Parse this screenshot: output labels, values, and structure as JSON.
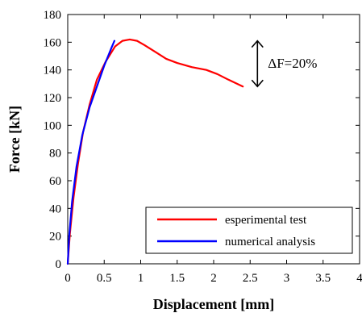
{
  "chart_data": {
    "type": "line",
    "title": "",
    "xlabel": "Displacement [mm]",
    "ylabel": "Force [kN]",
    "xlim": [
      0,
      4
    ],
    "ylim": [
      0,
      180
    ],
    "x_ticks": [
      0,
      0.5,
      1,
      1.5,
      2,
      2.5,
      3,
      3.5,
      4
    ],
    "y_ticks": [
      0,
      20,
      40,
      60,
      80,
      100,
      120,
      140,
      160,
      180
    ],
    "x_tick_labels": [
      "0",
      "0.5",
      "1",
      "1.5",
      "2",
      "2.5",
      "3",
      "3.5",
      "4"
    ],
    "y_tick_labels": [
      "0",
      "20",
      "40",
      "60",
      "80",
      "100",
      "120",
      "140",
      "160",
      "180"
    ],
    "grid": false,
    "legend_position": "bottom-right",
    "series": [
      {
        "name": "esperimental test",
        "color": "#ff0000",
        "points": [
          [
            0.0,
            0
          ],
          [
            0.03,
            22
          ],
          [
            0.08,
            48
          ],
          [
            0.14,
            72
          ],
          [
            0.21,
            95
          ],
          [
            0.3,
            115
          ],
          [
            0.4,
            133
          ],
          [
            0.52,
            146
          ],
          [
            0.65,
            157
          ],
          [
            0.75,
            161
          ],
          [
            0.85,
            162
          ],
          [
            0.95,
            161
          ],
          [
            1.05,
            158
          ],
          [
            1.2,
            153
          ],
          [
            1.35,
            148
          ],
          [
            1.5,
            145
          ],
          [
            1.7,
            142
          ],
          [
            1.9,
            140
          ],
          [
            2.05,
            137
          ],
          [
            2.2,
            133
          ],
          [
            2.4,
            128
          ]
        ]
      },
      {
        "name": "numerical analysis",
        "color": "#0000ff",
        "points": [
          [
            0.0,
            0
          ],
          [
            0.02,
            20
          ],
          [
            0.06,
            45
          ],
          [
            0.12,
            70
          ],
          [
            0.2,
            93
          ],
          [
            0.3,
            113
          ],
          [
            0.4,
            128
          ],
          [
            0.5,
            143
          ],
          [
            0.6,
            156
          ],
          [
            0.64,
            161
          ]
        ]
      }
    ],
    "annotations": [
      {
        "text": "ΔF=20%",
        "arrow_x": 2.6,
        "arrow_y_top": 161,
        "arrow_y_bottom": 128
      }
    ]
  }
}
